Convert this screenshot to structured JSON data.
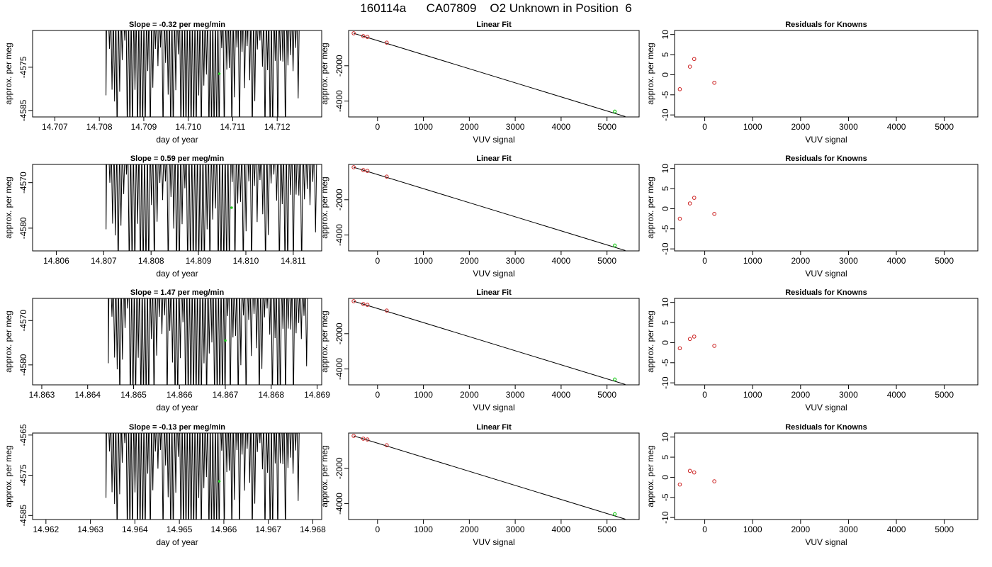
{
  "title": "160114a      CA07809    O2 Unknown in Position  6",
  "colors": {
    "axis": "#000000",
    "trace": "#000000",
    "known_points": "#cc2222",
    "unknown_point": "#22cc22",
    "fit_line": "#000000"
  },
  "chart_data": [
    {
      "id": "row1-trace",
      "type": "line",
      "title": "Slope =  -0.32  per meg/min",
      "xlabel": "day of year",
      "ylabel": "approx. per meg",
      "xlim": [
        14.7065,
        14.713
      ],
      "ylim": [
        -4586.5,
        -4566.5
      ],
      "xticks": [
        "14.707",
        "14.708",
        "14.709",
        "14.710",
        "14.711",
        "14.712"
      ],
      "xtick_values": [
        14.707,
        14.708,
        14.709,
        14.71,
        14.711,
        14.712
      ],
      "yticks": [
        "-4575",
        "-4585"
      ],
      "ytick_values": [
        -4575,
        -4585
      ],
      "trace": {
        "x_start": 14.7082,
        "x_end": 14.7125,
        "lead_in": 14.70815,
        "n": 150,
        "low_floor": -4586.5
      },
      "marker": {
        "x": 14.7107,
        "y": -4576.5
      }
    },
    {
      "id": "row1-fit",
      "type": "scatter",
      "title": "Linear Fit",
      "xlabel": "VUV signal",
      "ylabel": "approx. per meg",
      "xlim": [
        -630,
        5700
      ],
      "ylim": [
        -4900,
        0
      ],
      "xticks": [
        "0",
        "1000",
        "2000",
        "3000",
        "4000",
        "5000"
      ],
      "xtick_values": [
        0,
        1000,
        2000,
        3000,
        4000,
        5000
      ],
      "yticks": [
        "-2000",
        "-4000"
      ],
      "ytick_values": [
        -2000,
        -4000
      ],
      "known": [
        [
          -520,
          -160
        ],
        [
          -310,
          -320
        ],
        [
          -220,
          -365
        ],
        [
          200,
          -690
        ]
      ],
      "unknown": [
        [
          5170,
          -4590
        ]
      ],
      "fit_line": [
        [
          -520,
          -160
        ],
        [
          5400,
          -4880
        ]
      ]
    },
    {
      "id": "row1-resid",
      "type": "scatter",
      "title": "Residuals for Knowns",
      "xlabel": "VUV signal",
      "ylabel": "approx. per meg",
      "xlim": [
        -630,
        5700
      ],
      "ylim": [
        -10.5,
        11
      ],
      "xticks": [
        "0",
        "1000",
        "2000",
        "3000",
        "4000",
        "5000"
      ],
      "xtick_values": [
        0,
        1000,
        2000,
        3000,
        4000,
        5000
      ],
      "yticks": [
        "-10",
        "-5",
        "0",
        "5",
        "10"
      ],
      "ytick_values": [
        -10,
        -5,
        0,
        5,
        10
      ],
      "known": [
        [
          -520,
          -3.6
        ],
        [
          -310,
          2.0
        ],
        [
          -220,
          3.9
        ],
        [
          200,
          -2.0
        ]
      ]
    },
    {
      "id": "row2-trace",
      "type": "line",
      "title": "Slope =  0.59  per meg/min",
      "xlabel": "day of year",
      "ylabel": "approx. per meg",
      "xlim": [
        14.8055,
        14.8116
      ],
      "ylim": [
        -4585,
        -4566
      ],
      "xticks": [
        "14.806",
        "14.807",
        "14.808",
        "14.809",
        "14.810",
        "14.811"
      ],
      "xtick_values": [
        14.806,
        14.807,
        14.808,
        14.809,
        14.81,
        14.811
      ],
      "yticks": [
        "-4570",
        "-4580"
      ],
      "ytick_values": [
        -4570,
        -4580
      ],
      "trace": {
        "x_start": 14.8071,
        "x_end": 14.8115,
        "lead_in": 14.80705,
        "n": 150,
        "low_floor": -4585
      },
      "marker": {
        "x": 14.8097,
        "y": -4575.5
      }
    },
    {
      "id": "row2-fit",
      "type": "scatter",
      "title": "Linear Fit",
      "xlabel": "VUV signal",
      "ylabel": "approx. per meg",
      "xlim": [
        -630,
        5700
      ],
      "ylim": [
        -4900,
        0
      ],
      "xticks": [
        "0",
        "1000",
        "2000",
        "3000",
        "4000",
        "5000"
      ],
      "xtick_values": [
        0,
        1000,
        2000,
        3000,
        4000,
        5000
      ],
      "yticks": [
        "-2000",
        "-4000"
      ],
      "ytick_values": [
        -2000,
        -4000
      ],
      "known": [
        [
          -520,
          -160
        ],
        [
          -310,
          -320
        ],
        [
          -220,
          -365
        ],
        [
          200,
          -690
        ]
      ],
      "unknown": [
        [
          5170,
          -4590
        ]
      ],
      "fit_line": [
        [
          -520,
          -160
        ],
        [
          5400,
          -4880
        ]
      ]
    },
    {
      "id": "row2-resid",
      "type": "scatter",
      "title": "Residuals for Knowns",
      "xlabel": "VUV signal",
      "ylabel": "approx. per meg",
      "xlim": [
        -630,
        5700
      ],
      "ylim": [
        -10.5,
        11
      ],
      "xticks": [
        "0",
        "1000",
        "2000",
        "3000",
        "4000",
        "5000"
      ],
      "xtick_values": [
        0,
        1000,
        2000,
        3000,
        4000,
        5000
      ],
      "yticks": [
        "-10",
        "-5",
        "0",
        "5",
        "10"
      ],
      "ytick_values": [
        -10,
        -5,
        0,
        5,
        10
      ],
      "known": [
        [
          -520,
          -2.5
        ],
        [
          -310,
          1.3
        ],
        [
          -220,
          2.7
        ],
        [
          200,
          -1.3
        ]
      ]
    },
    {
      "id": "row3-trace",
      "type": "line",
      "title": "Slope =  1.47  per meg/min",
      "xlabel": "day of year",
      "ylabel": "approx. per meg",
      "xlim": [
        14.8628,
        14.8691
      ],
      "ylim": [
        -4584.5,
        -4565
      ],
      "xticks": [
        "14.863",
        "14.864",
        "14.865",
        "14.866",
        "14.867",
        "14.868",
        "14.869"
      ],
      "xtick_values": [
        14.863,
        14.864,
        14.865,
        14.866,
        14.867,
        14.868,
        14.869
      ],
      "yticks": [
        "-4570",
        "-4580"
      ],
      "ytick_values": [
        -4570,
        -4580
      ],
      "trace": {
        "x_start": 14.8645,
        "x_end": 14.8688,
        "lead_in": 14.86445,
        "n": 150,
        "low_floor": -4584.5
      },
      "marker": {
        "x": 14.867,
        "y": -4574.5
      }
    },
    {
      "id": "row3-fit",
      "type": "scatter",
      "title": "Linear Fit",
      "xlabel": "VUV signal",
      "ylabel": "approx. per meg",
      "xlim": [
        -630,
        5700
      ],
      "ylim": [
        -4900,
        0
      ],
      "xticks": [
        "0",
        "1000",
        "2000",
        "3000",
        "4000",
        "5000"
      ],
      "xtick_values": [
        0,
        1000,
        2000,
        3000,
        4000,
        5000
      ],
      "yticks": [
        "-2000",
        "-4000"
      ],
      "ytick_values": [
        -2000,
        -4000
      ],
      "known": [
        [
          -520,
          -160
        ],
        [
          -310,
          -320
        ],
        [
          -220,
          -365
        ],
        [
          200,
          -690
        ]
      ],
      "unknown": [
        [
          5170,
          -4590
        ]
      ],
      "fit_line": [
        [
          -520,
          -160
        ],
        [
          5400,
          -4880
        ]
      ]
    },
    {
      "id": "row3-resid",
      "type": "scatter",
      "title": "Residuals for Knowns",
      "xlabel": "VUV signal",
      "ylabel": "approx. per meg",
      "xlim": [
        -630,
        5700
      ],
      "ylim": [
        -10.5,
        11
      ],
      "xticks": [
        "0",
        "1000",
        "2000",
        "3000",
        "4000",
        "5000"
      ],
      "xtick_values": [
        0,
        1000,
        2000,
        3000,
        4000,
        5000
      ],
      "yticks": [
        "-10",
        "-5",
        "0",
        "5",
        "10"
      ],
      "ytick_values": [
        -10,
        -5,
        0,
        5,
        10
      ],
      "known": [
        [
          -520,
          -1.4
        ],
        [
          -310,
          0.9
        ],
        [
          -220,
          1.5
        ],
        [
          200,
          -0.8
        ]
      ]
    },
    {
      "id": "row4-trace",
      "type": "line",
      "title": "Slope =  -0.13  per meg/min",
      "xlabel": "day of year",
      "ylabel": "approx. per meg",
      "xlim": [
        14.9617,
        14.9682
      ],
      "ylim": [
        -4586,
        -4564.5
      ],
      "xticks": [
        "14.962",
        "14.963",
        "14.964",
        "14.965",
        "14.966",
        "14.967",
        "14.968"
      ],
      "xtick_values": [
        14.962,
        14.963,
        14.964,
        14.965,
        14.966,
        14.967,
        14.968
      ],
      "yticks": [
        "-4565",
        "-4575",
        "-4585"
      ],
      "ytick_values": [
        -4565,
        -4575,
        -4585
      ],
      "trace": {
        "x_start": 14.9634,
        "x_end": 14.9677,
        "lead_in": 14.96335,
        "n": 150,
        "low_floor": -4586
      },
      "marker": {
        "x": 14.9659,
        "y": -4576.5
      }
    },
    {
      "id": "row4-fit",
      "type": "scatter",
      "title": "Linear Fit",
      "xlabel": "VUV signal",
      "ylabel": "approx. per meg",
      "xlim": [
        -630,
        5700
      ],
      "ylim": [
        -4900,
        0
      ],
      "xticks": [
        "0",
        "1000",
        "2000",
        "3000",
        "4000",
        "5000"
      ],
      "xtick_values": [
        0,
        1000,
        2000,
        3000,
        4000,
        5000
      ],
      "yticks": [
        "-2000",
        "-4000"
      ],
      "ytick_values": [
        -2000,
        -4000
      ],
      "known": [
        [
          -520,
          -160
        ],
        [
          -310,
          -320
        ],
        [
          -220,
          -365
        ],
        [
          200,
          -690
        ]
      ],
      "unknown": [
        [
          5170,
          -4590
        ]
      ],
      "fit_line": [
        [
          -520,
          -160
        ],
        [
          5400,
          -4880
        ]
      ]
    },
    {
      "id": "row4-resid",
      "type": "scatter",
      "title": "Residuals for Knowns",
      "xlabel": "VUV signal",
      "ylabel": "approx. per meg",
      "xlim": [
        -630,
        5700
      ],
      "ylim": [
        -10.5,
        11
      ],
      "xticks": [
        "0",
        "1000",
        "2000",
        "3000",
        "4000",
        "5000"
      ],
      "xtick_values": [
        0,
        1000,
        2000,
        3000,
        4000,
        5000
      ],
      "yticks": [
        "-10",
        "-5",
        "0",
        "5",
        "10"
      ],
      "ytick_values": [
        -10,
        -5,
        0,
        5,
        10
      ],
      "known": [
        [
          -520,
          -1.8
        ],
        [
          -310,
          1.6
        ],
        [
          -220,
          1.2
        ],
        [
          200,
          -1.0
        ]
      ]
    }
  ]
}
